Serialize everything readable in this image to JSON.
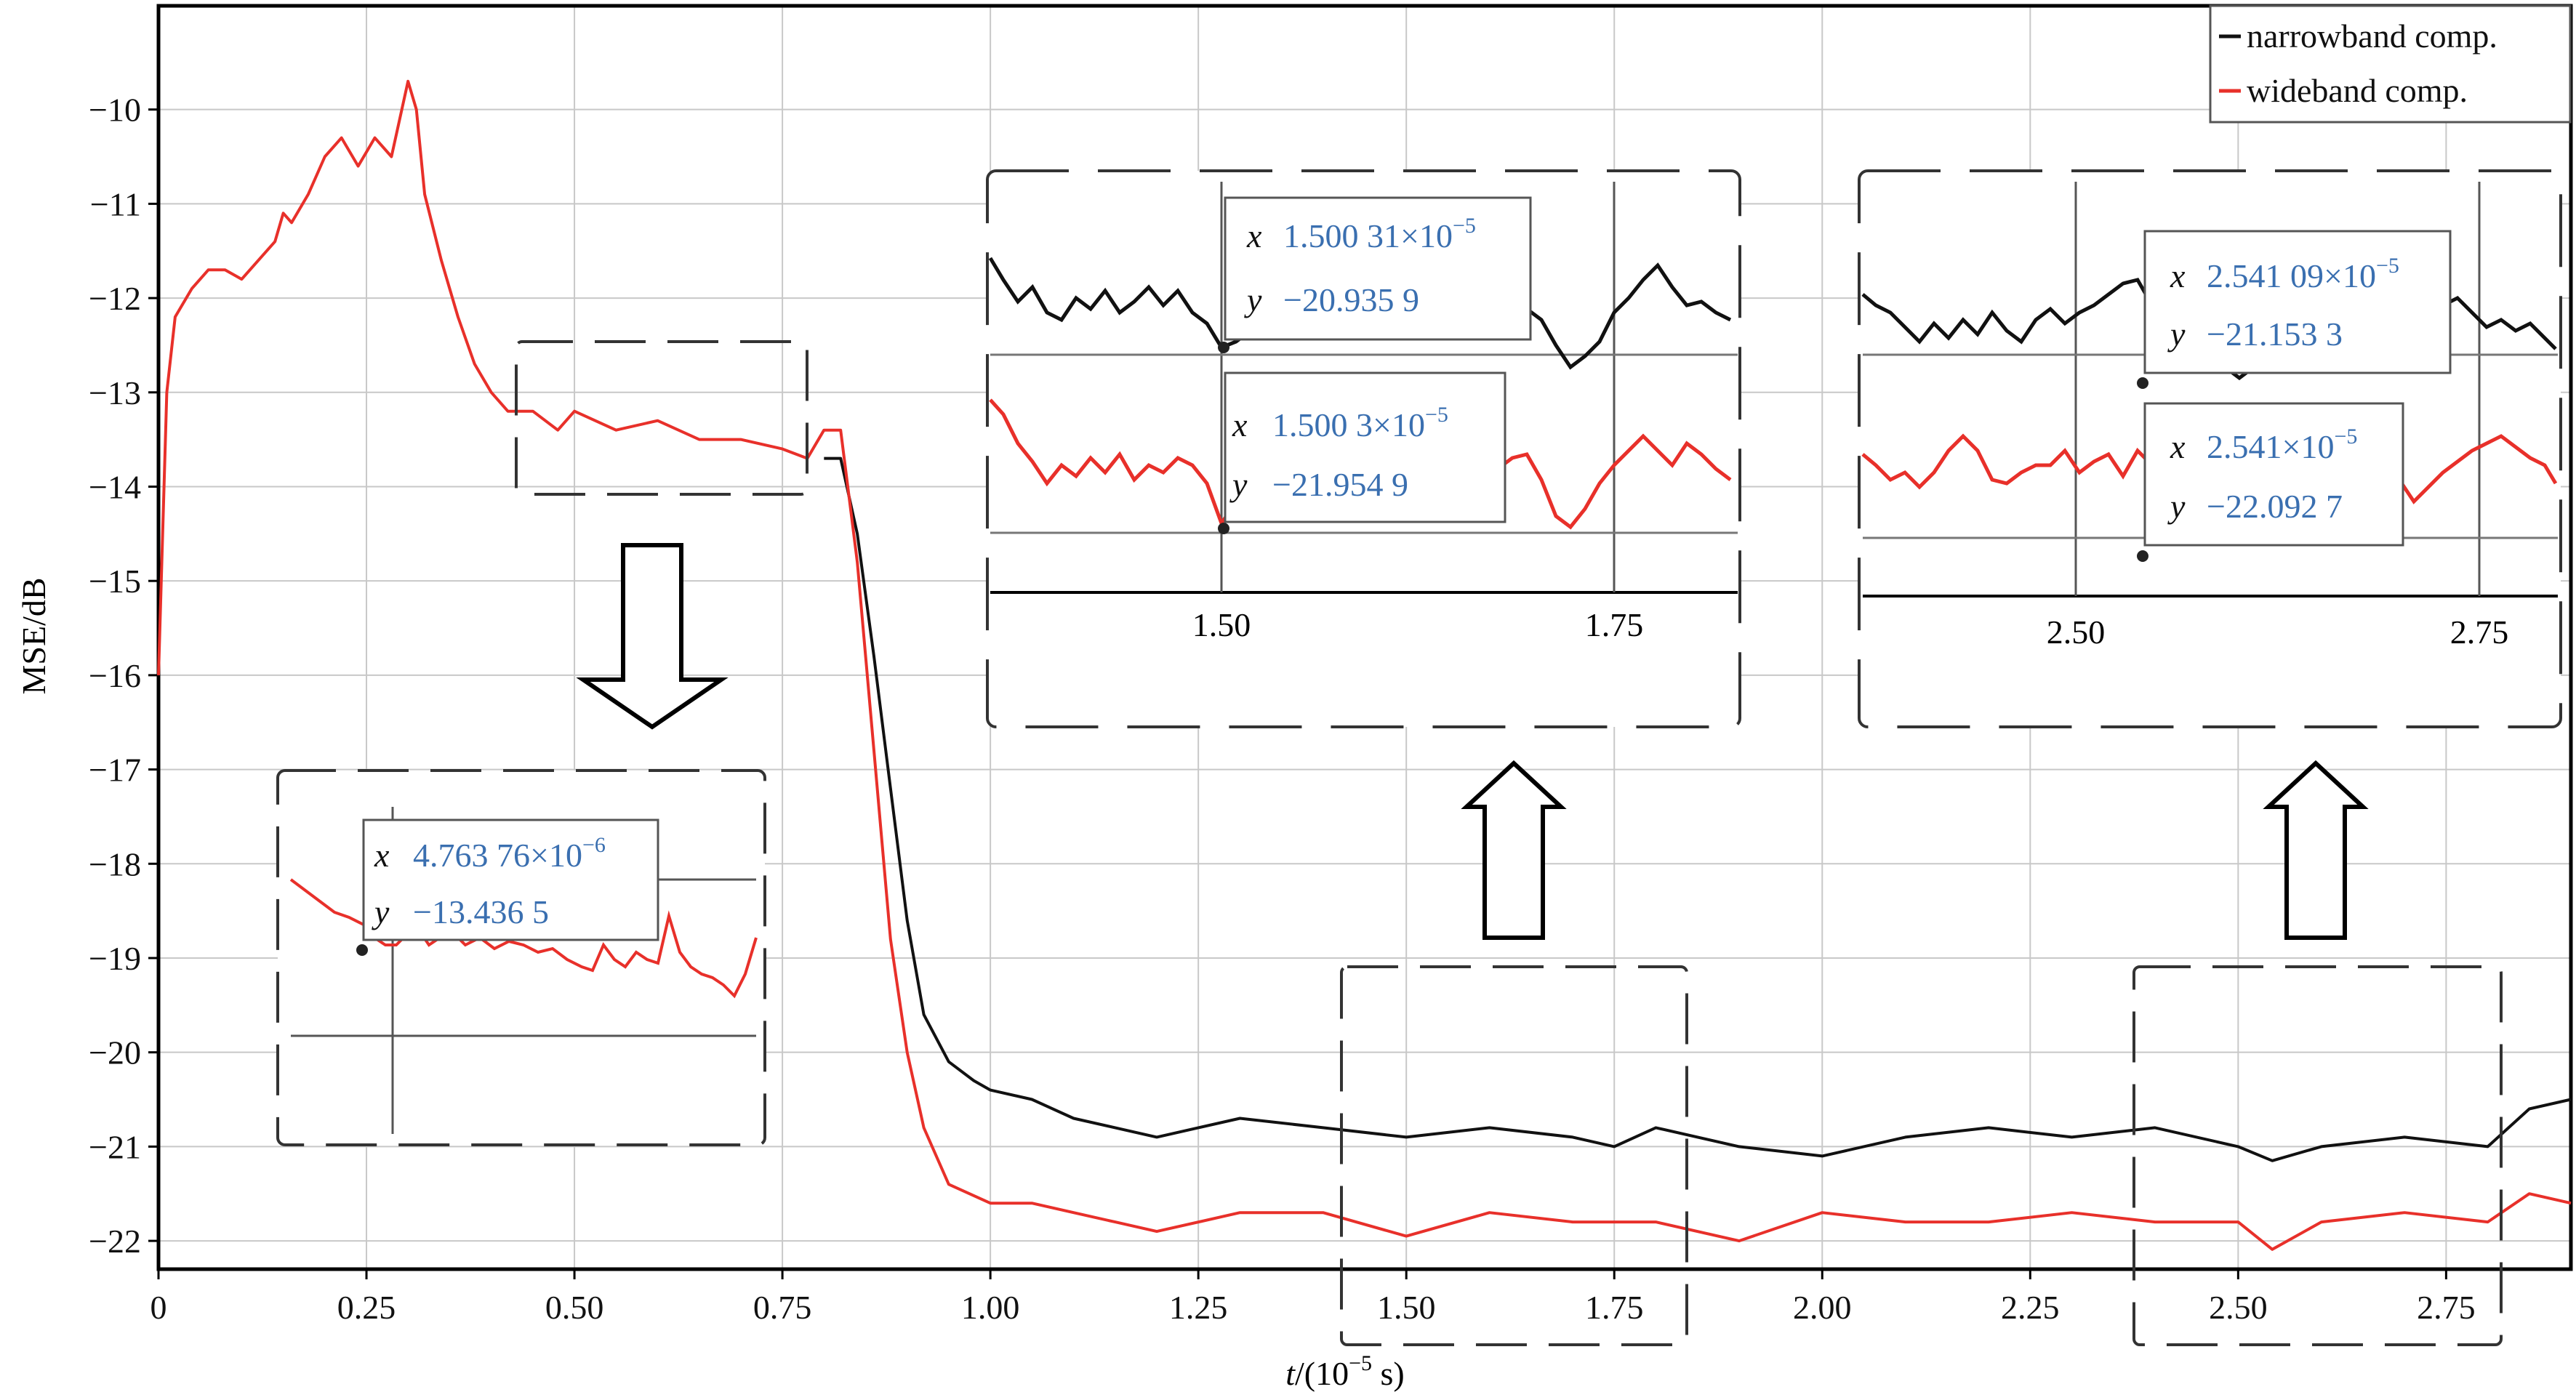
{
  "chart_data": {
    "type": "line",
    "title": "",
    "xlabel_main": "t",
    "xlabel_unit": "/(10",
    "xlabel_exp": "−5",
    "xlabel_tail": " s)",
    "ylabel": "MSE/dB",
    "xlim": [
      0,
      2.9
    ],
    "ylim": [
      -22.3,
      -8.9
    ],
    "x_ticks": [
      0,
      0.25,
      0.5,
      0.75,
      1.0,
      1.25,
      1.5,
      1.75,
      2.0,
      2.25,
      2.5,
      2.75
    ],
    "x_tick_labels": [
      "0",
      "0.25",
      "0.50",
      "0.75",
      "1.00",
      "1.25",
      "1.50",
      "1.75",
      "2.00",
      "2.25",
      "2.50",
      "2.75"
    ],
    "y_ticks": [
      -10,
      -11,
      -12,
      -13,
      -14,
      -15,
      -16,
      -17,
      -18,
      -19,
      -20,
      -21,
      -22
    ],
    "y_tick_labels": [
      "−10",
      "−11",
      "−12",
      "−13",
      "−14",
      "−15",
      "−16",
      "−17",
      "−18",
      "−19",
      "−20",
      "−21",
      "−22"
    ],
    "grid": true,
    "legend_position": "top-right",
    "colors": {
      "narrowband": "#111111",
      "wideband": "#e8302a",
      "readout": "#3a6fb0"
    },
    "series": [
      {
        "name": "narrowband comp.",
        "color": "#111111",
        "x": [
          0.8,
          0.82,
          0.84,
          0.86,
          0.88,
          0.9,
          0.92,
          0.95,
          0.98,
          1.0,
          1.05,
          1.1,
          1.15,
          1.2,
          1.25,
          1.3,
          1.4,
          1.5,
          1.6,
          1.7,
          1.75,
          1.8,
          1.9,
          2.0,
          2.1,
          2.2,
          2.3,
          2.4,
          2.5,
          2.541,
          2.6,
          2.7,
          2.8,
          2.85,
          2.9
        ],
        "values": [
          -13.7,
          -13.7,
          -14.5,
          -15.8,
          -17.2,
          -18.6,
          -19.6,
          -20.1,
          -20.3,
          -20.4,
          -20.5,
          -20.7,
          -20.8,
          -20.9,
          -20.8,
          -20.7,
          -20.8,
          -20.9,
          -20.8,
          -20.9,
          -21.0,
          -20.8,
          -21.0,
          -21.1,
          -20.9,
          -20.8,
          -20.9,
          -20.8,
          -21.0,
          -21.15,
          -21.0,
          -20.9,
          -21.0,
          -20.6,
          -20.5
        ]
      },
      {
        "name": "wideband comp.",
        "color": "#e8302a",
        "x": [
          0.0,
          0.005,
          0.01,
          0.02,
          0.04,
          0.06,
          0.08,
          0.1,
          0.12,
          0.14,
          0.15,
          0.16,
          0.18,
          0.2,
          0.22,
          0.24,
          0.26,
          0.28,
          0.3,
          0.31,
          0.32,
          0.34,
          0.36,
          0.38,
          0.4,
          0.42,
          0.45,
          0.48,
          0.5,
          0.55,
          0.6,
          0.65,
          0.7,
          0.75,
          0.78,
          0.8,
          0.82,
          0.84,
          0.86,
          0.88,
          0.9,
          0.92,
          0.95,
          1.0,
          1.05,
          1.1,
          1.15,
          1.2,
          1.3,
          1.4,
          1.5,
          1.6,
          1.7,
          1.8,
          1.9,
          2.0,
          2.1,
          2.2,
          2.3,
          2.4,
          2.5,
          2.541,
          2.6,
          2.7,
          2.8,
          2.85,
          2.9
        ],
        "values": [
          -16.0,
          -14.5,
          -13.0,
          -12.2,
          -11.9,
          -11.7,
          -11.7,
          -11.8,
          -11.6,
          -11.4,
          -11.1,
          -11.2,
          -10.9,
          -10.5,
          -10.3,
          -10.6,
          -10.3,
          -10.5,
          -9.7,
          -10.0,
          -10.9,
          -11.6,
          -12.2,
          -12.7,
          -13.0,
          -13.2,
          -13.2,
          -13.4,
          -13.2,
          -13.4,
          -13.3,
          -13.5,
          -13.5,
          -13.6,
          -13.7,
          -13.4,
          -13.4,
          -14.8,
          -16.8,
          -18.8,
          -20.0,
          -20.8,
          -21.4,
          -21.6,
          -21.6,
          -21.7,
          -21.8,
          -21.9,
          -21.7,
          -21.7,
          -21.95,
          -21.7,
          -21.8,
          -21.8,
          -22.0,
          -21.7,
          -21.8,
          -21.8,
          -21.7,
          -21.8,
          -21.8,
          -22.09,
          -21.8,
          -21.7,
          -21.8,
          -21.5,
          -21.6
        ]
      }
    ],
    "annotations": [
      {
        "x_label": "x",
        "x_value": "4.763 76×10",
        "x_exp": "−6",
        "y_label": "y",
        "y_value": "−13.436 5"
      },
      {
        "x_label": "x",
        "x_value": "1.500 31×10",
        "x_exp": "−5",
        "y_label": "y",
        "y_value": "−20.935 9"
      },
      {
        "x_label": "x",
        "x_value": "1.500 3×10",
        "x_exp": "−5",
        "y_label": "y",
        "y_value": "−21.954 9"
      },
      {
        "x_label": "x",
        "x_value": "2.541 09×10",
        "x_exp": "−5",
        "y_label": "y",
        "y_value": "−21.153 3"
      },
      {
        "x_label": "x",
        "x_value": "2.541×10",
        "x_exp": "−5",
        "y_label": "y",
        "y_value": "−22.092 7"
      }
    ],
    "inset_tick_labels": {
      "inset_a": [
        "1.50",
        "1.75"
      ],
      "inset_b": [
        "2.50",
        "2.75"
      ]
    }
  }
}
